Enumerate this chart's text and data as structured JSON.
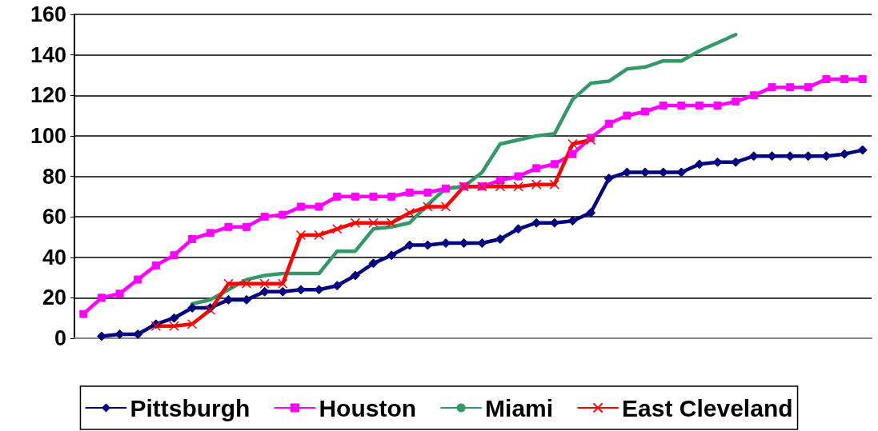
{
  "chart_data": {
    "type": "line",
    "categories": [
      null,
      null,
      null,
      null,
      null,
      null,
      null,
      null,
      null,
      null,
      null,
      null,
      null,
      null,
      null,
      null,
      null,
      null,
      null,
      null,
      null,
      null,
      null,
      null,
      null,
      null,
      null,
      null,
      null,
      null,
      null,
      null,
      null,
      null,
      null,
      null,
      null,
      null,
      null,
      null,
      null,
      null,
      null,
      null
    ],
    "series": [
      {
        "name": "Pittsburgh",
        "color": "#000080",
        "marker": "diamond",
        "values": [
          null,
          1,
          2,
          2,
          7,
          10,
          15,
          15,
          19,
          19,
          23,
          23,
          24,
          24,
          26,
          31,
          37,
          41,
          46,
          46,
          47,
          47,
          47,
          49,
          54,
          57,
          57,
          58,
          62,
          79,
          82,
          82,
          82,
          82,
          86,
          87,
          87,
          90,
          90,
          90,
          90,
          90,
          91,
          93
        ]
      },
      {
        "name": "Houston",
        "color": "#ff00ff",
        "marker": "square",
        "values": [
          12,
          20,
          22,
          29,
          36,
          41,
          49,
          52,
          55,
          55,
          60,
          61,
          65,
          65,
          70,
          70,
          70,
          70,
          72,
          72,
          74,
          75,
          75,
          78,
          80,
          84,
          86,
          91,
          99,
          106,
          110,
          112,
          115,
          115,
          115,
          115,
          117,
          120,
          124,
          124,
          124,
          128,
          128,
          128
        ]
      },
      {
        "name": "Miami",
        "color": "#339966",
        "marker": "none",
        "values": [
          null,
          null,
          null,
          null,
          null,
          null,
          17,
          19,
          24,
          29,
          31,
          32,
          32,
          32,
          43,
          43,
          54,
          55,
          57,
          66,
          74,
          75,
          82,
          96,
          98,
          100,
          101,
          118,
          126,
          127,
          133,
          134,
          137,
          137,
          142,
          146,
          150,
          null,
          null,
          null,
          null,
          null,
          null,
          null
        ]
      },
      {
        "name": "East Cleveland",
        "color": "#ff0000",
        "marker": "cross",
        "values": [
          null,
          null,
          null,
          null,
          6,
          6,
          7,
          14,
          27,
          27,
          27,
          27,
          51,
          51,
          54,
          57,
          57,
          57,
          62,
          65,
          65,
          75,
          75,
          75,
          75,
          76,
          76,
          96,
          98,
          null,
          null,
          null,
          null,
          null,
          null,
          null,
          null,
          null,
          null,
          null,
          null,
          null,
          null,
          null
        ]
      }
    ],
    "ylim": [
      0,
      160
    ],
    "yticks": [
      0,
      20,
      40,
      60,
      80,
      100,
      120,
      140,
      160
    ],
    "grid": "y",
    "legend": "bottom"
  }
}
